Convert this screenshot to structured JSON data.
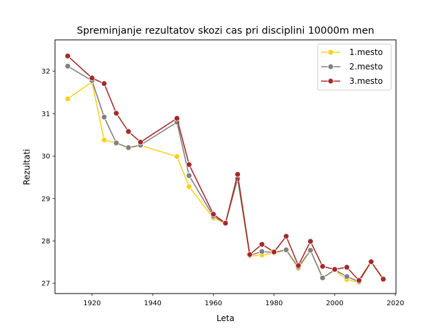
{
  "chart_data": {
    "type": "line",
    "title": "Spreminjanje rezultatov skozi cas pri disciplini 10000m men",
    "xlabel": "Leta",
    "ylabel": "Rezultati",
    "xlim": [
      1907.8,
      2020.2
    ],
    "ylim": [
      26.76,
      32.74
    ],
    "x_ticks": [
      1920,
      1940,
      1960,
      1980,
      2000,
      2020
    ],
    "y_ticks": [
      27,
      28,
      29,
      30,
      31,
      32
    ],
    "grid": false,
    "legend_position": "top-right",
    "series": [
      {
        "name": "1.mesto",
        "color": "#FFD01A",
        "x": [
          1912,
          1920,
          1924,
          1928,
          1932,
          1936,
          1948,
          1952,
          1960,
          1964,
          1968,
          1972,
          1976,
          1980,
          1984,
          1988,
          1992,
          1996,
          2000,
          2004,
          2008,
          2012,
          2016
        ],
        "y": [
          31.35,
          31.75,
          30.38,
          30.31,
          30.19,
          30.25,
          29.99,
          29.28,
          28.54,
          28.41,
          29.46,
          27.64,
          27.67,
          27.71,
          27.79,
          27.35,
          27.78,
          27.13,
          27.31,
          27.09,
          27.02,
          27.51,
          27.09
        ]
      },
      {
        "name": "2.mesto",
        "color": "#808080",
        "x": [
          1912,
          1920,
          1924,
          1928,
          1932,
          1936,
          1948,
          1952,
          1960,
          1964,
          1968,
          1972,
          1976,
          1980,
          1984,
          1988,
          1992,
          1996,
          2000,
          2004,
          2008,
          2012,
          2016
        ],
        "y": [
          32.12,
          31.78,
          30.92,
          30.31,
          30.2,
          30.26,
          30.8,
          29.54,
          28.58,
          28.42,
          29.47,
          27.66,
          27.75,
          27.73,
          27.79,
          27.38,
          27.78,
          27.13,
          27.32,
          27.16,
          27.04,
          27.51,
          27.1
        ]
      },
      {
        "name": "3.mesto",
        "color": "#A52A2A",
        "x": [
          1912,
          1920,
          1924,
          1928,
          1932,
          1936,
          1948,
          1952,
          1960,
          1964,
          1968,
          1972,
          1976,
          1980,
          1984,
          1988,
          1992,
          1996,
          2000,
          2004,
          2008,
          2012,
          2016
        ],
        "y": [
          32.36,
          31.84,
          31.71,
          31.01,
          30.58,
          30.33,
          30.89,
          29.8,
          28.63,
          28.42,
          29.57,
          27.68,
          27.92,
          27.74,
          28.11,
          27.42,
          27.99,
          27.4,
          27.33,
          27.38,
          27.07,
          27.51,
          27.1
        ]
      }
    ]
  }
}
